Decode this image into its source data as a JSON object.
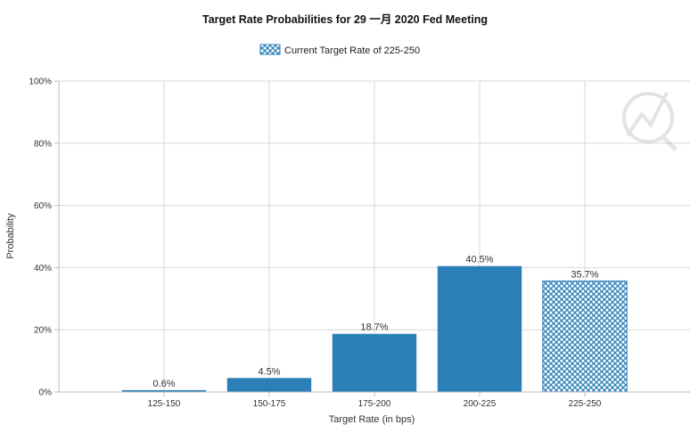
{
  "chart_data": {
    "type": "bar",
    "title": "Target Rate Probabilities for 29 一月 2020 Fed Meeting",
    "legend": {
      "label": "Current Target Rate of 225-250",
      "position": "top-center"
    },
    "xlabel": "Target Rate (in bps)",
    "ylabel": "Probability",
    "categories": [
      "125-150",
      "150-175",
      "175-200",
      "200-225",
      "225-250"
    ],
    "values": [
      0.6,
      4.5,
      18.7,
      40.5,
      35.7
    ],
    "data_labels": [
      "0.6%",
      "4.5%",
      "18.7%",
      "40.5%",
      "35.7%"
    ],
    "current_category": "225-250",
    "ylim": [
      0,
      100
    ],
    "yticks": [
      "0%",
      "20%",
      "40%",
      "60%",
      "80%",
      "100%"
    ],
    "grid": true,
    "colors": {
      "bar": "#2a7fb8",
      "hatch": "#2a7fb8",
      "grid": "#d9d9d9"
    }
  }
}
